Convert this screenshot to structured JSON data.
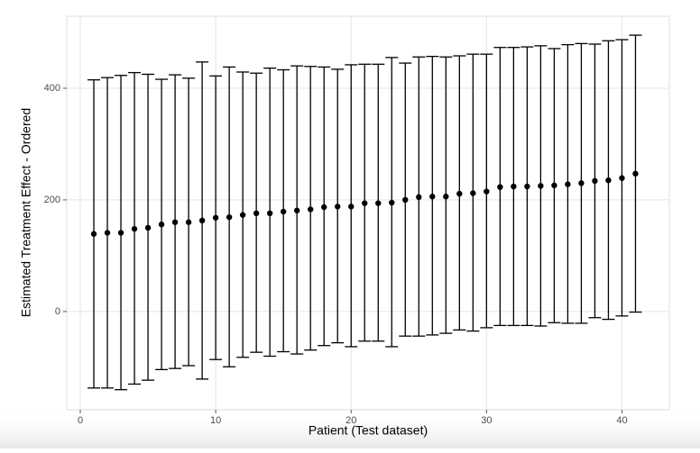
{
  "chart_data": {
    "type": "errorbar",
    "x_label": "Patient (Test dataset)",
    "y_label": "Estimated Treatment Effect - Ordered",
    "x": [
      1,
      2,
      3,
      4,
      5,
      6,
      7,
      8,
      9,
      10,
      11,
      12,
      13,
      14,
      15,
      16,
      17,
      18,
      19,
      20,
      21,
      22,
      23,
      24,
      25,
      26,
      27,
      28,
      29,
      30,
      31,
      32,
      33,
      34,
      35,
      36,
      37,
      38,
      39,
      40,
      41
    ],
    "series": [
      {
        "name": "estimate",
        "color": "#000000",
        "values": [
          139,
          141,
          141,
          148,
          150,
          156,
          160,
          160,
          163,
          168,
          169,
          173,
          176,
          176,
          179,
          181,
          183,
          187,
          188,
          188,
          194,
          194,
          195,
          200,
          205,
          206,
          206,
          211,
          212,
          215,
          223,
          224,
          224,
          225,
          226,
          228,
          230,
          234,
          235,
          239,
          247
        ]
      },
      {
        "name": "upper",
        "color": "#000000",
        "values": [
          415,
          419,
          423,
          428,
          425,
          416,
          424,
          418,
          447,
          422,
          438,
          429,
          427,
          436,
          433,
          440,
          439,
          438,
          434,
          442,
          443,
          443,
          455,
          445,
          456,
          457,
          456,
          458,
          461,
          461,
          473,
          473,
          474,
          476,
          471,
          478,
          480,
          479,
          485,
          487,
          495
        ]
      },
      {
        "name": "lower",
        "color": "#000000",
        "values": [
          -137,
          -137,
          -140,
          -130,
          -123,
          -104,
          -102,
          -97,
          -121,
          -86,
          -99,
          -82,
          -73,
          -80,
          -72,
          -76,
          -69,
          -61,
          -56,
          -63,
          -53,
          -53,
          -63,
          -44,
          -44,
          -42,
          -39,
          -33,
          -35,
          -29,
          -25,
          -25,
          -25,
          -26,
          -20,
          -21,
          -21,
          -11,
          -14,
          -8,
          -1
        ]
      }
    ],
    "xlim": [
      -1,
      43.5
    ],
    "ylim": [
      -176,
      529
    ],
    "xticks": [
      0,
      10,
      20,
      30,
      40
    ],
    "yticks": [
      0,
      200,
      400
    ],
    "grid": true
  }
}
